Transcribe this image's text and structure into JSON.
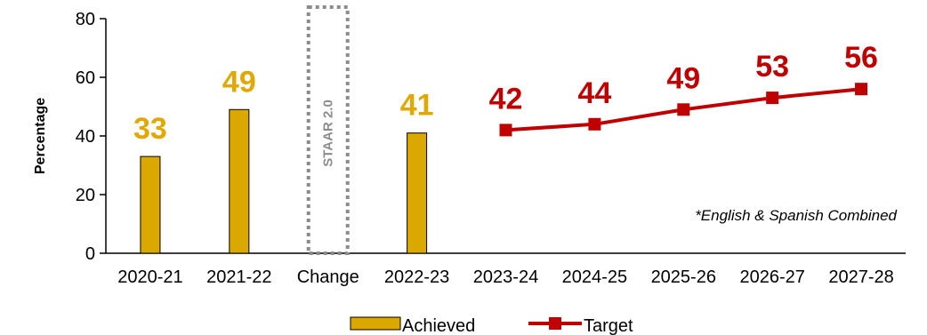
{
  "chart_data": {
    "type": "bar",
    "categories": [
      "2020-21",
      "2021-22",
      "Change",
      "2022-23",
      "2023-24",
      "2024-25",
      "2025-26",
      "2026-27",
      "2027-28"
    ],
    "ylabel": "Percentage",
    "ylim": [
      0,
      80
    ],
    "yticks": [
      0,
      20,
      40,
      60,
      80
    ],
    "series": [
      {
        "name": "Achieved",
        "kind": "bar",
        "color": "#dba800",
        "label_color": "#e0a800",
        "points": [
          {
            "x": "2020-21",
            "y": 33
          },
          {
            "x": "2021-22",
            "y": 49
          },
          {
            "x": "2022-23",
            "y": 41
          }
        ]
      },
      {
        "name": "Target",
        "kind": "line",
        "color": "#c00000",
        "marker": "square",
        "points": [
          {
            "x": "2023-24",
            "y": 42
          },
          {
            "x": "2024-25",
            "y": 44
          },
          {
            "x": "2025-26",
            "y": 49
          },
          {
            "x": "2026-27",
            "y": 53
          },
          {
            "x": "2027-28",
            "y": 56
          }
        ]
      }
    ],
    "break_marker": {
      "category": "Change",
      "label": "STAAR 2.0",
      "color": "#8c8c8c"
    },
    "annotation": "*English & Spanish Combined",
    "legend_position": "bottom",
    "grid": false
  }
}
